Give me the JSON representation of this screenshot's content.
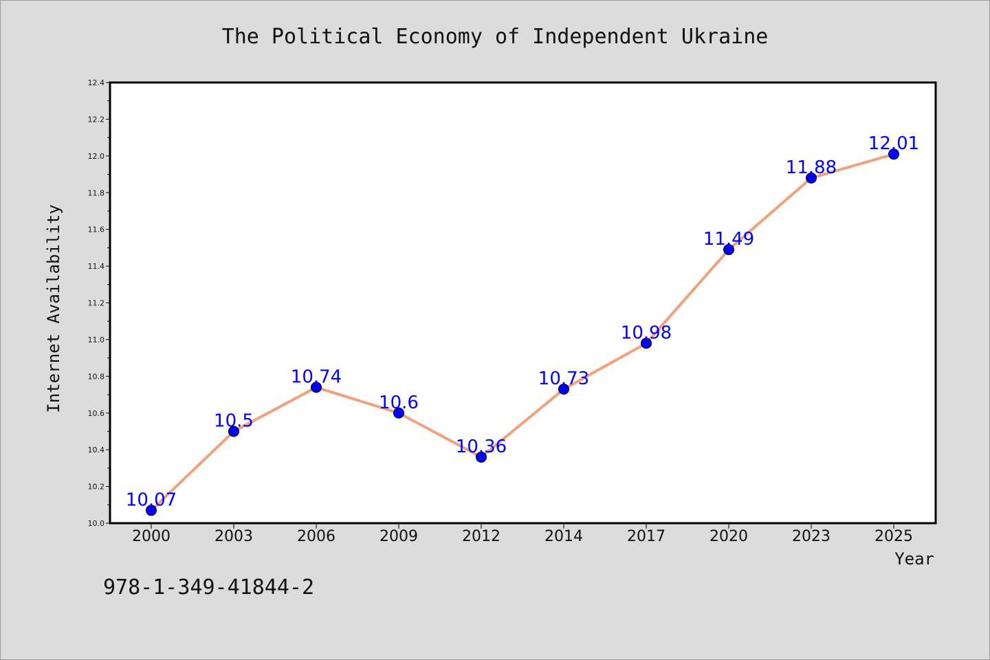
{
  "chart_data": {
    "type": "line",
    "title": "The Political Economy of Independent Ukraine",
    "xlabel": "Year",
    "ylabel": "Internet Availability",
    "categories": [
      "2000",
      "2003",
      "2006",
      "2009",
      "2012",
      "2014",
      "2017",
      "2020",
      "2023",
      "2025"
    ],
    "series": [
      {
        "values": [
          10.07,
          10.5,
          10.74,
          10.6,
          10.36,
          10.73,
          10.98,
          11.49,
          11.88,
          12.01
        ],
        "data_labels": [
          "10.07",
          "10.5",
          "10.74",
          "10.6",
          "10.36",
          "10.73",
          "10.98",
          "11.49",
          "11.88",
          "12.01"
        ]
      }
    ],
    "ylim": [
      10.0,
      12.4
    ],
    "yticks": [
      "10.0",
      "10.2",
      "10.4",
      "10.6",
      "10.8",
      "11.0",
      "11.2",
      "11.4",
      "11.6",
      "11.8",
      "12.0",
      "12.2",
      "12.4"
    ],
    "grid": false,
    "legend": "none",
    "colors": {
      "line": "#f4a07a",
      "marker": "#0000ff",
      "label": "#0000ff",
      "background": "#dcdcdc",
      "plot_area": "#ffffff"
    }
  },
  "annotation": "978-1-349-41844-2"
}
